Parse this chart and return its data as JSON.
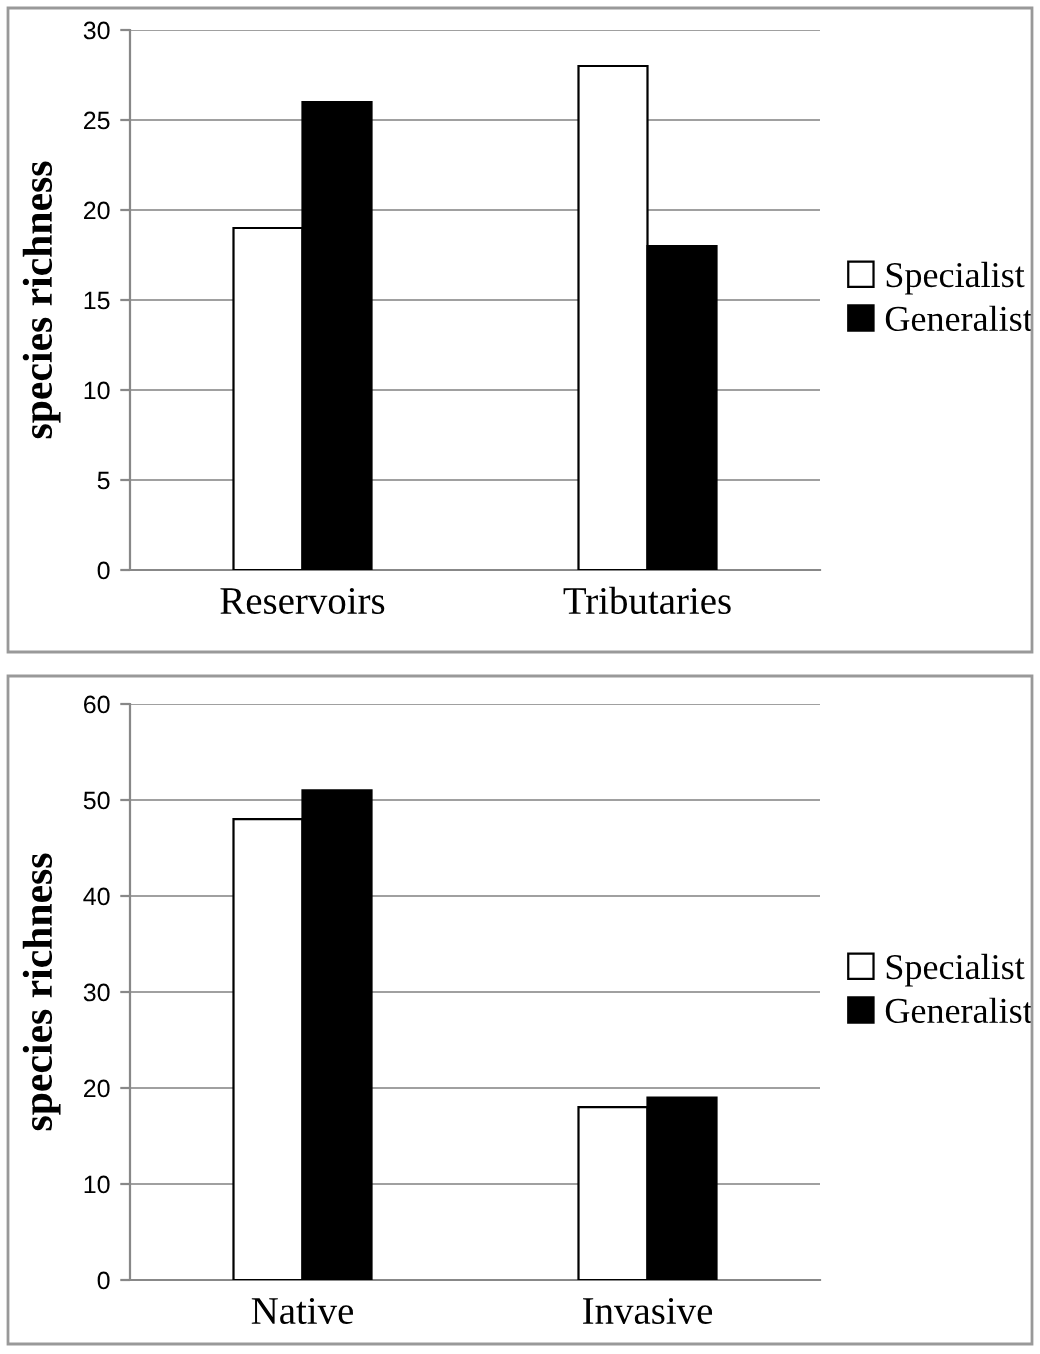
{
  "chart_data": [
    {
      "type": "bar",
      "ylabel": "species richness",
      "categories": [
        "Reservoirs",
        "Tributaries"
      ],
      "series": [
        {
          "name": "Specialist",
          "color": "#ffffff",
          "values": [
            19,
            28
          ]
        },
        {
          "name": "Generalist",
          "color": "#000000",
          "values": [
            26,
            18
          ]
        }
      ],
      "ylim": [
        0,
        30
      ],
      "yticks": [
        0,
        5,
        10,
        15,
        20,
        25,
        30
      ],
      "grid": "y",
      "legend": "right"
    },
    {
      "type": "bar",
      "ylabel": "species richness",
      "categories": [
        "Native",
        "Invasive"
      ],
      "series": [
        {
          "name": "Specialist",
          "color": "#ffffff",
          "values": [
            48,
            18
          ]
        },
        {
          "name": "Generalist",
          "color": "#000000",
          "values": [
            51,
            19
          ]
        }
      ],
      "ylim": [
        0,
        60
      ],
      "yticks": [
        0,
        10,
        20,
        30,
        40,
        50,
        60
      ],
      "grid": "y",
      "legend": "right"
    }
  ]
}
